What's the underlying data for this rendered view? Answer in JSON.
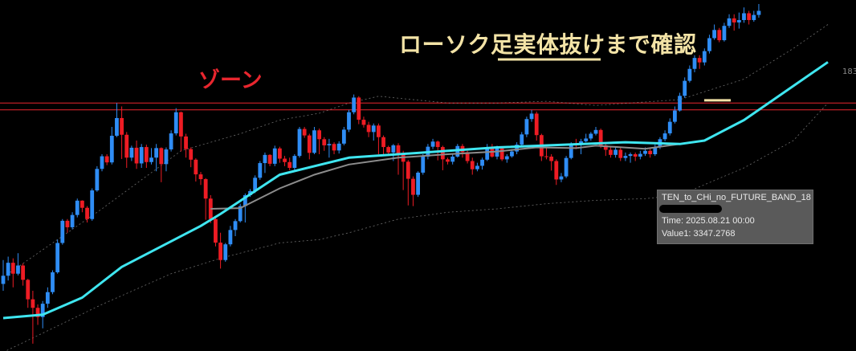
{
  "annotations": {
    "title": "ローソク足実体抜けまで確認",
    "zone": "ゾーン",
    "price_axis_label": "183"
  },
  "tooltip": {
    "series_name": "TEN_to_CHi_no_FUTURE_BAND_18",
    "time": "Time: 2025.08.21 00:00",
    "value": "Value1: 3347.2768"
  },
  "colors": {
    "background": "#000000",
    "bull_candle": "#2f8df5",
    "bear_candle": "#ee1c24",
    "cyan_band": "#3fe6f0",
    "gray_band": "#8c8c8c",
    "zone_line": "#e8262e",
    "annotation_text": "#f3e3a6",
    "dotted_band": "#9a9a9a"
  },
  "chart_data": {
    "type": "candlestick",
    "ylim": [
      0,
      100
    ],
    "zone_levels": [
      69.0,
      71.0
    ],
    "underline_marker_level": 71.8,
    "candles": [
      [
        18.0,
        20.4,
        25.0,
        16.0
      ],
      [
        20.4,
        24.2,
        26.0,
        19.0
      ],
      [
        24.2,
        21.0,
        25.5,
        17.0
      ],
      [
        21.0,
        23.4,
        27.0,
        20.5
      ],
      [
        23.4,
        19.2,
        24.0,
        17.5
      ],
      [
        19.2,
        13.5,
        19.5,
        11.0
      ],
      [
        13.5,
        11.0,
        16.0,
        0.5
      ],
      [
        11.0,
        8.3,
        12.0,
        6.0
      ],
      [
        8.3,
        12.2,
        13.0,
        5.0
      ],
      [
        12.2,
        15.6,
        17.0,
        11.0
      ],
      [
        15.6,
        21.4,
        22.0,
        15.0
      ],
      [
        21.4,
        30.0,
        31.0,
        21.0
      ],
      [
        30.0,
        36.5,
        37.0,
        29.5
      ],
      [
        36.5,
        34.6,
        37.0,
        33.0
      ],
      [
        34.6,
        38.2,
        39.0,
        34.0
      ],
      [
        38.2,
        42.4,
        43.0,
        37.5
      ],
      [
        42.4,
        40.3,
        42.5,
        39.0
      ],
      [
        40.3,
        37.0,
        40.8,
        36.0
      ],
      [
        37.0,
        45.4,
        46.0,
        36.5
      ],
      [
        45.4,
        51.7,
        52.5,
        45.0
      ],
      [
        51.7,
        55.4,
        56.0,
        51.0
      ],
      [
        55.4,
        53.6,
        56.0,
        52.8
      ],
      [
        53.6,
        61.4,
        64.0,
        53.0
      ],
      [
        61.4,
        66.6,
        71.0,
        61.0
      ],
      [
        66.6,
        61.7,
        70.0,
        54.6
      ],
      [
        61.7,
        55.0,
        62.5,
        52.0
      ],
      [
        55.0,
        57.9,
        58.5,
        54.0
      ],
      [
        57.9,
        53.3,
        60.0,
        51.7
      ],
      [
        53.3,
        58.1,
        59.0,
        52.0
      ],
      [
        58.1,
        53.7,
        58.8,
        52.0
      ],
      [
        53.7,
        55.0,
        57.8,
        53.0
      ],
      [
        55.0,
        57.8,
        59.0,
        51.0
      ],
      [
        57.8,
        53.1,
        58.0,
        47.8
      ],
      [
        53.1,
        57.4,
        58.0,
        51.0
      ],
      [
        57.4,
        62.1,
        63.0,
        56.8
      ],
      [
        62.1,
        68.3,
        69.5,
        61.5
      ],
      [
        68.3,
        61.2,
        68.5,
        56.8
      ],
      [
        61.2,
        57.5,
        62.0,
        55.0
      ],
      [
        57.5,
        54.4,
        58.0,
        52.2
      ],
      [
        54.4,
        50.1,
        54.8,
        48.0
      ],
      [
        50.1,
        48.7,
        50.8,
        47.0
      ],
      [
        48.7,
        43.0,
        49.0,
        36.8
      ],
      [
        43.0,
        37.0,
        44.0,
        35.8
      ],
      [
        37.0,
        30.1,
        37.5,
        29.0
      ],
      [
        30.1,
        25.0,
        33.0,
        22.5
      ],
      [
        25.0,
        29.6,
        30.0,
        24.5
      ],
      [
        29.6,
        33.8,
        35.0,
        29.0
      ],
      [
        33.8,
        36.4,
        37.0,
        32.0
      ],
      [
        36.4,
        40.8,
        41.5,
        36.0
      ],
      [
        40.8,
        44.0,
        44.5,
        36.0
      ],
      [
        44.0,
        45.2,
        45.8,
        43.5
      ],
      [
        45.2,
        49.1,
        49.8,
        44.6
      ],
      [
        49.1,
        53.4,
        54.0,
        48.5
      ],
      [
        53.4,
        55.8,
        56.5,
        50.5
      ],
      [
        55.8,
        53.2,
        56.0,
        52.5
      ],
      [
        53.2,
        57.7,
        58.5,
        52.5
      ],
      [
        57.7,
        54.7,
        58.2,
        53.5
      ],
      [
        54.7,
        53.7,
        55.5,
        52.5
      ],
      [
        53.7,
        52.0,
        55.0,
        51.3
      ],
      [
        52.0,
        55.5,
        56.0,
        51.0
      ],
      [
        55.5,
        63.4,
        64.0,
        55.0
      ],
      [
        63.4,
        61.5,
        64.0,
        60.8
      ],
      [
        61.5,
        56.4,
        62.0,
        54.5
      ],
      [
        56.4,
        63.0,
        64.0,
        56.0
      ],
      [
        63.0,
        60.4,
        63.5,
        56.0
      ],
      [
        60.4,
        58.6,
        61.0,
        57.0
      ],
      [
        58.6,
        59.0,
        60.5,
        55.0
      ],
      [
        59.0,
        57.1,
        59.5,
        56.0
      ],
      [
        57.1,
        59.1,
        59.8,
        56.2
      ],
      [
        59.1,
        63.2,
        64.0,
        58.6
      ],
      [
        63.2,
        68.3,
        69.0,
        62.5
      ],
      [
        68.3,
        72.6,
        73.5,
        67.7
      ],
      [
        72.6,
        66.1,
        73.0,
        64.8
      ],
      [
        66.1,
        64.6,
        67.0,
        63.8
      ],
      [
        64.6,
        62.5,
        65.5,
        61.0
      ],
      [
        62.5,
        64.4,
        65.0,
        60.0
      ],
      [
        64.4,
        61.0,
        65.0,
        56.0
      ],
      [
        61.0,
        58.1,
        61.5,
        55.5
      ],
      [
        58.1,
        56.5,
        58.5,
        56.0
      ],
      [
        56.5,
        58.6,
        59.0,
        54.0
      ],
      [
        58.6,
        56.1,
        59.2,
        50.0
      ],
      [
        56.1,
        53.8,
        57.0,
        45.5
      ],
      [
        53.8,
        48.8,
        54.3,
        41.0
      ],
      [
        48.8,
        44.1,
        49.5,
        40.8
      ],
      [
        44.1,
        50.6,
        51.0,
        43.5
      ],
      [
        50.6,
        55.3,
        56.0,
        50.0
      ],
      [
        55.3,
        58.2,
        59.0,
        54.5
      ],
      [
        58.2,
        59.7,
        60.5,
        57.5
      ],
      [
        59.7,
        58.1,
        60.0,
        54.2
      ],
      [
        58.1,
        54.5,
        58.5,
        51.3
      ],
      [
        54.5,
        53.8,
        55.0,
        53.0
      ],
      [
        53.8,
        55.3,
        56.0,
        53.0
      ],
      [
        55.3,
        58.4,
        59.0,
        55.0
      ],
      [
        58.4,
        56.6,
        59.0,
        55.0
      ],
      [
        56.6,
        54.0,
        57.0,
        53.3
      ],
      [
        54.0,
        51.6,
        55.0,
        50.0
      ],
      [
        51.6,
        52.6,
        53.5,
        51.0
      ],
      [
        52.6,
        54.4,
        55.0,
        51.5
      ],
      [
        54.4,
        57.8,
        59.0,
        54.0
      ],
      [
        57.8,
        55.3,
        59.0,
        55.0
      ],
      [
        55.3,
        57.7,
        58.5,
        54.5
      ],
      [
        57.7,
        54.5,
        58.0,
        54.0
      ],
      [
        54.5,
        55.4,
        56.0,
        53.5
      ],
      [
        55.4,
        56.8,
        57.5,
        55.0
      ],
      [
        56.8,
        58.8,
        59.5,
        56.0
      ],
      [
        58.8,
        61.8,
        62.5,
        58.0
      ],
      [
        61.8,
        66.3,
        67.0,
        61.0
      ],
      [
        66.3,
        67.9,
        69.0,
        65.5
      ],
      [
        67.9,
        61.6,
        68.5,
        60.0
      ],
      [
        61.6,
        55.4,
        62.0,
        54.0
      ],
      [
        55.4,
        55.3,
        58.0,
        54.5
      ],
      [
        55.3,
        54.0,
        56.0,
        51.2
      ],
      [
        54.0,
        48.6,
        54.5,
        47.0
      ],
      [
        48.6,
        49.5,
        50.5,
        47.8
      ],
      [
        49.5,
        54.9,
        55.5,
        49.0
      ],
      [
        54.9,
        58.8,
        59.5,
        54.5
      ],
      [
        58.8,
        58.7,
        60.5,
        57.5
      ],
      [
        58.7,
        59.8,
        60.5,
        56.0
      ],
      [
        59.8,
        60.6,
        62.0,
        59.5
      ],
      [
        60.6,
        62.0,
        62.5,
        60.0
      ],
      [
        62.0,
        63.1,
        64.0,
        61.5
      ],
      [
        63.1,
        58.6,
        63.5,
        57.8
      ],
      [
        58.6,
        57.3,
        59.0,
        55.5
      ],
      [
        57.3,
        55.8,
        58.0,
        55.0
      ],
      [
        55.8,
        57.3,
        58.0,
        55.0
      ],
      [
        57.3,
        54.9,
        58.0,
        54.0
      ],
      [
        54.9,
        55.5,
        56.5,
        54.0
      ],
      [
        55.5,
        56.0,
        56.5,
        53.5
      ],
      [
        56.0,
        55.3,
        56.5,
        54.0
      ],
      [
        55.3,
        56.1,
        57.0,
        54.5
      ],
      [
        56.1,
        57.0,
        58.0,
        55.5
      ],
      [
        57.0,
        56.0,
        58.0,
        55.0
      ],
      [
        56.0,
        58.1,
        58.8,
        55.5
      ],
      [
        58.1,
        60.4,
        61.0,
        57.5
      ],
      [
        60.4,
        62.1,
        63.0,
        59.8
      ],
      [
        62.1,
        65.5,
        66.5,
        61.5
      ],
      [
        65.5,
        68.8,
        70.0,
        65.0
      ],
      [
        68.8,
        73.1,
        74.0,
        68.5
      ],
      [
        73.1,
        77.5,
        78.5,
        72.5
      ],
      [
        77.5,
        81.0,
        82.0,
        77.0
      ],
      [
        81.0,
        84.2,
        85.0,
        80.0
      ],
      [
        84.2,
        82.9,
        85.0,
        81.0
      ],
      [
        82.9,
        86.2,
        87.0,
        82.0
      ],
      [
        86.2,
        90.0,
        91.0,
        85.5
      ],
      [
        90.0,
        92.4,
        94.0,
        89.5
      ],
      [
        92.4,
        89.4,
        93.0,
        88.8
      ],
      [
        89.4,
        93.6,
        94.5,
        89.0
      ],
      [
        93.6,
        95.8,
        97.0,
        93.0
      ],
      [
        95.8,
        94.6,
        97.0,
        92.2
      ],
      [
        94.6,
        95.3,
        97.5,
        92.8
      ],
      [
        95.3,
        97.3,
        99.0,
        94.5
      ],
      [
        97.3,
        95.3,
        98.0,
        94.0
      ],
      [
        95.3,
        96.8,
        98.0,
        94.8
      ],
      [
        96.8,
        98.0,
        100.0,
        96.0
      ]
    ],
    "cyan_band": [
      [
        0,
        8.0
      ],
      [
        8,
        9.0
      ],
      [
        16,
        14.0
      ],
      [
        24,
        23.0
      ],
      [
        32,
        29.0
      ],
      [
        40,
        35.0
      ],
      [
        44,
        38.5
      ],
      [
        56,
        50.0
      ],
      [
        70,
        55.0
      ],
      [
        100,
        58.0
      ],
      [
        126,
        59.5
      ],
      [
        137,
        59.0
      ],
      [
        142,
        60.0
      ],
      [
        150,
        66.0
      ],
      [
        160,
        76.0
      ],
      [
        167,
        83.0
      ]
    ],
    "gray_band": [
      [
        42,
        40.0
      ],
      [
        48,
        40.2
      ],
      [
        56,
        46.0
      ],
      [
        63,
        50.0
      ],
      [
        70,
        53.0
      ],
      [
        80,
        55.0
      ],
      [
        90,
        56.0
      ],
      [
        100,
        56.8
      ],
      [
        108,
        58.0
      ],
      [
        116,
        57.8
      ],
      [
        120,
        58.5
      ],
      [
        130,
        57.6
      ],
      [
        137,
        59.0
      ]
    ],
    "upper_dotted_band": [
      [
        0,
        20.0
      ],
      [
        20,
        40.0
      ],
      [
        36,
        57.0
      ],
      [
        48,
        62.0
      ],
      [
        56,
        66.0
      ],
      [
        64,
        68.0
      ],
      [
        70,
        71.0
      ],
      [
        76,
        73.0
      ],
      [
        90,
        71.0
      ],
      [
        100,
        71.0
      ],
      [
        110,
        71.5
      ],
      [
        120,
        70.3
      ],
      [
        137,
        72.0
      ],
      [
        150,
        78.0
      ],
      [
        160,
        87.0
      ],
      [
        167,
        94.0
      ]
    ],
    "lower_dotted_band": [
      [
        0,
        -2.0
      ],
      [
        10,
        5.0
      ],
      [
        20,
        12.0
      ],
      [
        34,
        21.0
      ],
      [
        44,
        25.5
      ],
      [
        56,
        30.0
      ],
      [
        64,
        31.0
      ],
      [
        70,
        33.0
      ],
      [
        80,
        37.0
      ],
      [
        90,
        39.0
      ],
      [
        100,
        40.0
      ],
      [
        110,
        41.5
      ],
      [
        120,
        42.5
      ],
      [
        130,
        43.0
      ],
      [
        137,
        44.0
      ],
      [
        150,
        52.0
      ],
      [
        160,
        60.0
      ],
      [
        167,
        71.0
      ]
    ]
  }
}
